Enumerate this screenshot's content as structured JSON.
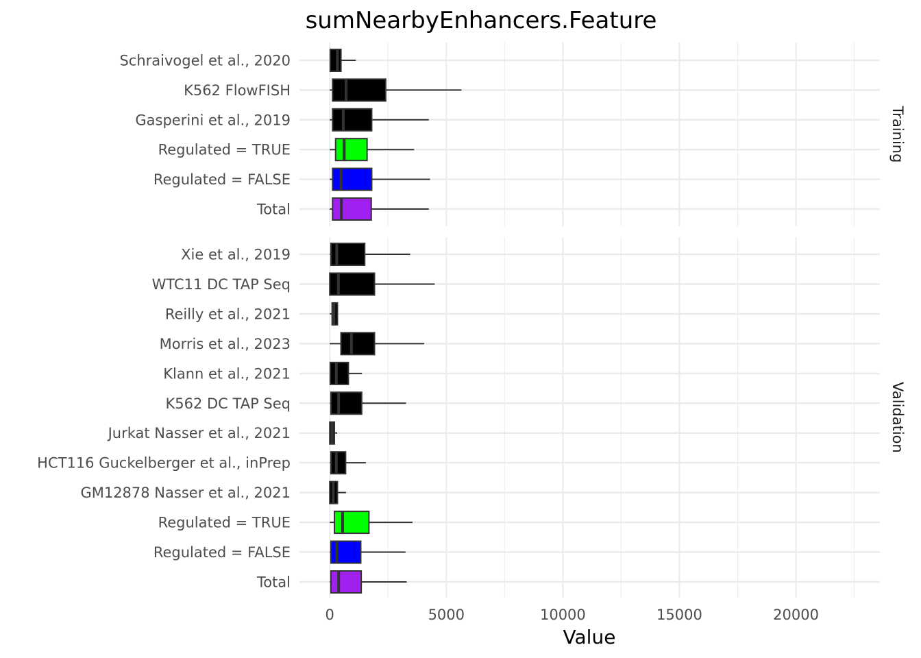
{
  "chart_data": {
    "type": "boxplot",
    "title": "sumNearbyEnhancers.Feature",
    "xlabel": "Value",
    "ylabel": "",
    "xlim": [
      -1300,
      23600
    ],
    "x_ticks": [
      0,
      5000,
      10000,
      15000,
      20000
    ],
    "x_tick_labels": [
      "0",
      "5000",
      "10000",
      "15000",
      "20000"
    ],
    "grid": true,
    "legend": "none",
    "panels": [
      {
        "name": "Training",
        "rows": [
          {
            "label": "Schraivogel et al., 2020",
            "color": "#000000",
            "whisker_low": 0,
            "q1": 20,
            "median": 330,
            "q3": 480,
            "whisker_high": 1120
          },
          {
            "label": "K562 FlowFISH",
            "color": "#000000",
            "whisker_low": 0,
            "q1": 120,
            "median": 700,
            "q3": 2400,
            "whisker_high": 5650
          },
          {
            "label": "Gasperini et al., 2019",
            "color": "#000000",
            "whisker_low": 0,
            "q1": 120,
            "median": 580,
            "q3": 1800,
            "whisker_high": 4250
          },
          {
            "label": "Regulated = TRUE",
            "color": "#00ff00",
            "whisker_low": 0,
            "q1": 250,
            "median": 620,
            "q3": 1600,
            "whisker_high": 3620
          },
          {
            "label": "Regulated = FALSE",
            "color": "#0000ff",
            "whisker_low": 0,
            "q1": 120,
            "median": 480,
            "q3": 1800,
            "whisker_high": 4300
          },
          {
            "label": "Total",
            "color": "#a020f0",
            "whisker_low": 0,
            "q1": 120,
            "median": 500,
            "q3": 1780,
            "whisker_high": 4250
          }
        ]
      },
      {
        "name": "Validation",
        "rows": [
          {
            "label": "Xie et al., 2019",
            "color": "#000000",
            "whisker_low": 0,
            "q1": 50,
            "median": 300,
            "q3": 1500,
            "whisker_high": 3450
          },
          {
            "label": "WTC11 DC TAP Seq",
            "color": "#000000",
            "whisker_low": 0,
            "q1": 0,
            "median": 370,
            "q3": 1920,
            "whisker_high": 4500
          },
          {
            "label": "Reilly et al., 2021",
            "color": "#000000",
            "whisker_low": 0,
            "q1": 100,
            "median": 180,
            "q3": 330,
            "whisker_high": 330
          },
          {
            "label": "Morris et al., 2023",
            "color": "#000000",
            "whisker_low": 0,
            "q1": 480,
            "median": 930,
            "q3": 1920,
            "whisker_high": 4050
          },
          {
            "label": "Klann et al., 2021",
            "color": "#000000",
            "whisker_low": 0,
            "q1": 20,
            "median": 280,
            "q3": 800,
            "whisker_high": 1380
          },
          {
            "label": "K562 DC TAP Seq",
            "color": "#000000",
            "whisker_low": 0,
            "q1": 50,
            "median": 380,
            "q3": 1370,
            "whisker_high": 3270
          },
          {
            "label": "Jurkat Nasser et al., 2021",
            "color": "#000000",
            "whisker_low": 0,
            "q1": 0,
            "median": 100,
            "q3": 200,
            "whisker_high": 320
          },
          {
            "label": "HCT116 Guckelberger et al., inPrep",
            "color": "#000000",
            "whisker_low": 0,
            "q1": 50,
            "median": 280,
            "q3": 680,
            "whisker_high": 1550
          },
          {
            "label": "GM12878 Nasser et al., 2021",
            "color": "#000000",
            "whisker_low": 0,
            "q1": 0,
            "median": 150,
            "q3": 330,
            "whisker_high": 700
          },
          {
            "label": "Regulated = TRUE",
            "color": "#00ff00",
            "whisker_low": 0,
            "q1": 200,
            "median": 550,
            "q3": 1680,
            "whisker_high": 3550
          },
          {
            "label": "Regulated = FALSE",
            "color": "#0000ff",
            "whisker_low": 0,
            "q1": 50,
            "median": 300,
            "q3": 1330,
            "whisker_high": 3250
          },
          {
            "label": "Total",
            "color": "#a020f0",
            "whisker_low": 0,
            "q1": 50,
            "median": 380,
            "q3": 1350,
            "whisker_high": 3300
          }
        ]
      }
    ]
  }
}
